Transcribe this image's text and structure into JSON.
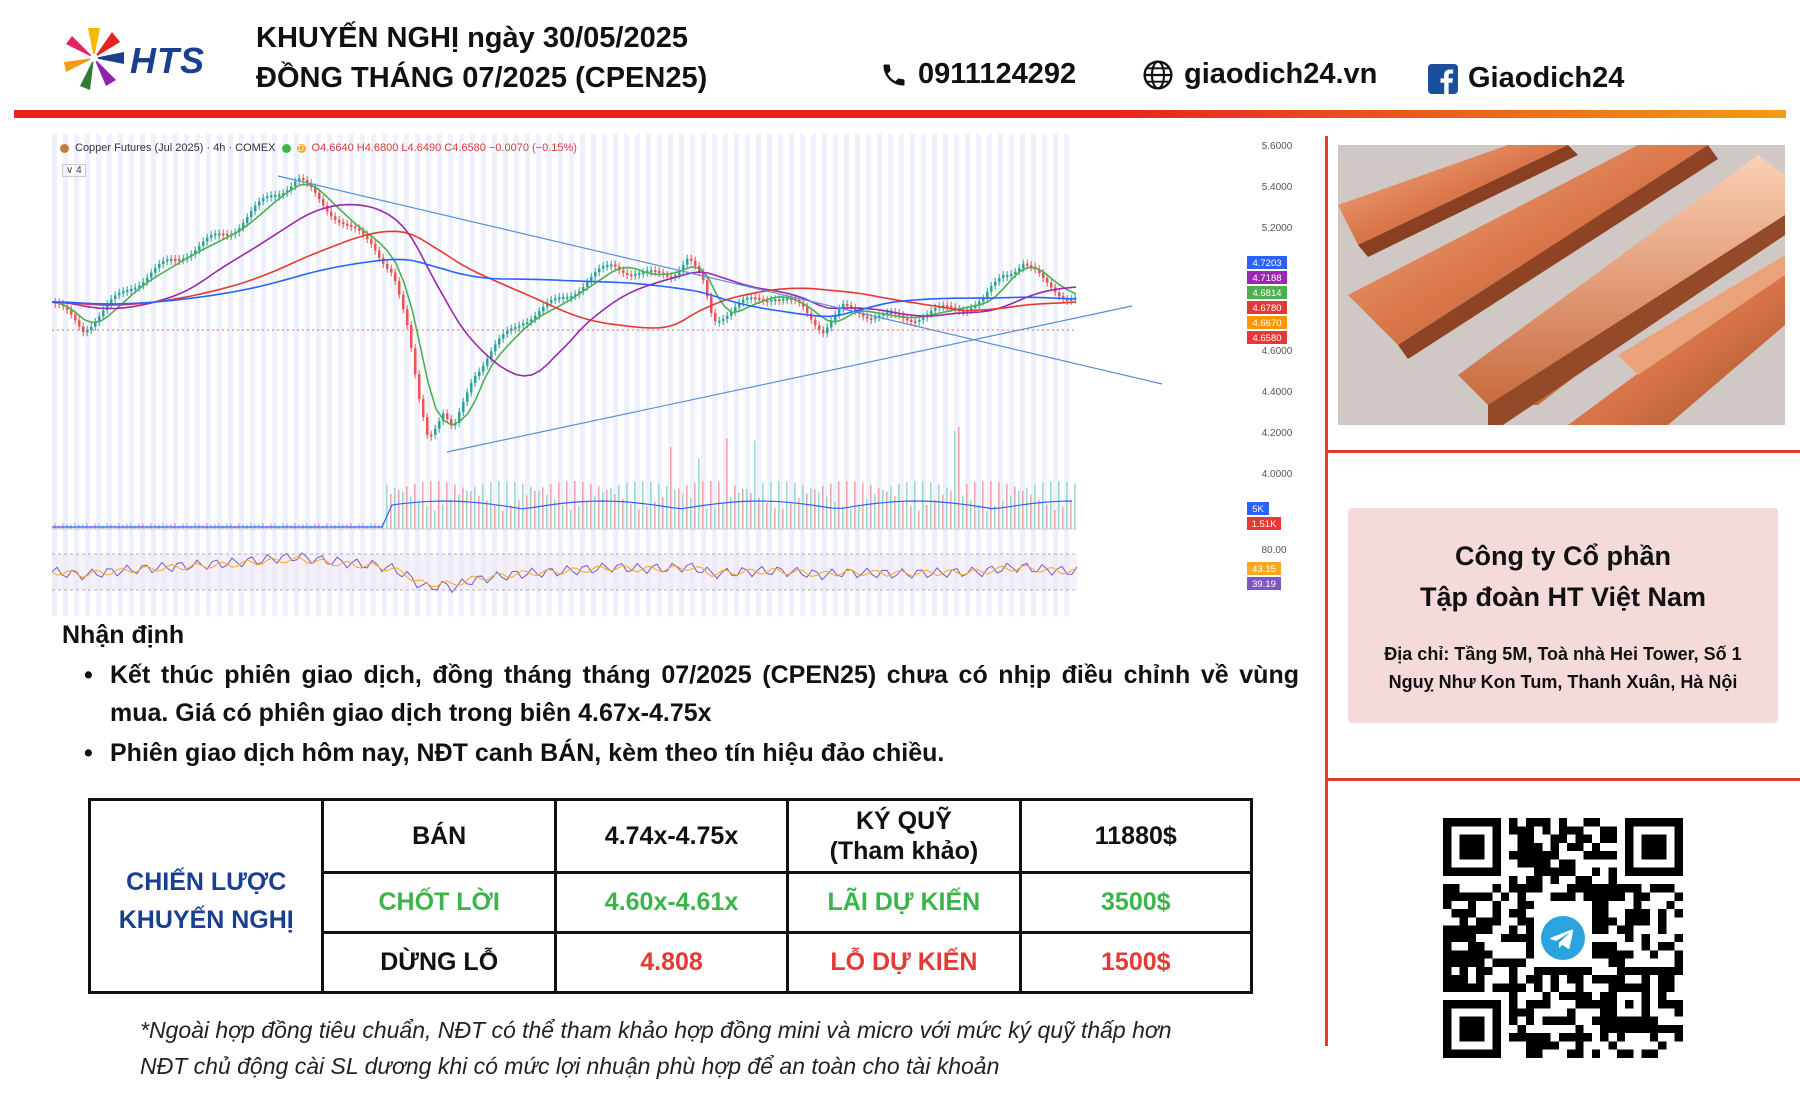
{
  "header": {
    "logo_text": "HTS",
    "title_line1": "KHUYẾN NGHỊ ngày 30/05/2025",
    "title_line2": "ĐỒNG THÁNG 07/2025 (CPEN25)",
    "phone": "0911124292",
    "website": "giaodich24.vn",
    "facebook": "Giaodich24"
  },
  "chart": {
    "legend_name": "Copper Futures (Jul 2025) · 4h · COMEX",
    "legend_flag": "D",
    "legend_ohlc": "O4.6640 H4.6800 L4.6490 C4.6580 −0.0070 (−0.15%)",
    "legend_sub": "∨ 4",
    "price_ticks": [
      "5.6000",
      "5.4000",
      "5.2000",
      "4.6000",
      "4.4000",
      "4.2000",
      "4.0000"
    ],
    "price_tags": [
      {
        "label": "4.7203",
        "color": "#2962ff"
      },
      {
        "label": "4.7188",
        "color": "#9c27b0"
      },
      {
        "label": "4.6814",
        "color": "#4caf50"
      },
      {
        "label": "4.6780",
        "color": "#e53935"
      },
      {
        "label": "4.6670",
        "color": "#ff9800"
      },
      {
        "label": "4.6580",
        "color": "#e53935"
      }
    ],
    "volume_tags": [
      {
        "label": "5K",
        "color": "#2962ff"
      },
      {
        "label": "1.51K",
        "color": "#e53935"
      }
    ],
    "rsi_ticks": [
      "80.00"
    ],
    "rsi_tags": [
      {
        "label": "43.15",
        "color": "#f9a825"
      },
      {
        "label": "39.19",
        "color": "#7e57c2"
      }
    ]
  },
  "analysis": {
    "title": "Nhận định",
    "bullets": [
      "Kết thúc phiên giao dịch, đồng tháng tháng 07/2025 (CPEN25) chưa có nhịp điều chỉnh về vùng mua. Giá có phiên giao dịch trong biên 4.67x-4.75x",
      "Phiên giao dịch hôm nay, NĐT canh BÁN, kèm theo tín hiệu đảo chiều."
    ]
  },
  "strategy_table": {
    "label_line1": "CHIẾN LƯỢC",
    "label_line2": "KHUYẾN NGHỊ",
    "rows": [
      {
        "action": "BÁN",
        "price": "4.74x-4.75x",
        "metric_line1": "KÝ QUỸ",
        "metric_line2": "(Tham khảo)",
        "value": "11880$"
      },
      {
        "action": "CHỐT LỜI",
        "price": "4.60x-4.61x",
        "metric_line1": "LÃI DỰ KIẾN",
        "metric_line2": "",
        "value": "3500$"
      },
      {
        "action": "DỪNG LỖ",
        "price": "4.808",
        "metric_line1": "LỖ DỰ KIẾN",
        "metric_line2": "",
        "value": "1500$"
      }
    ]
  },
  "footnote": {
    "line1": "*Ngoài hợp đồng tiêu chuẩn, NĐT có thể tham khảo hợp đồng mini và micro với mức ký quỹ thấp hơn",
    "line2": "NĐT chủ động cài SL dương khi có mức lợi nhuận phù hợp để an toàn cho tài khoản"
  },
  "company": {
    "name_line1": "Công ty Cổ phần",
    "name_line2": "Tập đoàn HT Việt Nam",
    "address_line1": "Địa chỉ: Tầng 5M, Toà nhà Hei Tower, Số 1",
    "address_line2": "Nguỵ Như Kon Tum, Thanh Xuân, Hà Nội"
  },
  "colors": {
    "accent_red": "#e52421",
    "accent_orange": "#f39c12",
    "navy": "#1b3f8f",
    "green": "#3bb54a",
    "red": "#e53935",
    "company_bg": "#f5dada"
  },
  "icons": [
    "phone-icon",
    "globe-icon",
    "facebook-icon",
    "telegram-icon"
  ]
}
